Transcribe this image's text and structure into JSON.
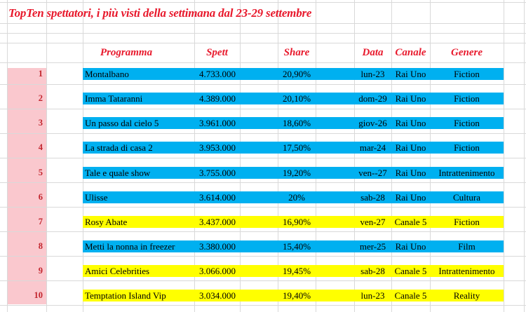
{
  "title": "TopTen spettatori, i più visti della settimana dal 23-29 settembre",
  "columns": {
    "programma": "Programma",
    "spett": "Spett",
    "share": "Share",
    "data": "Data",
    "canale": "Canale",
    "genere": "Genere"
  },
  "rows": [
    {
      "rank": "1",
      "programma": "Montalbano",
      "spett": "4.733.000",
      "share": "20,90%",
      "data": "lun-23",
      "canale": "Rai Uno",
      "genere": "Fiction",
      "highlight": "blue"
    },
    {
      "rank": "2",
      "programma": "Imma Tataranni",
      "spett": "4.389.000",
      "share": "20,10%",
      "data": "dom-29",
      "canale": "Rai Uno",
      "genere": "Fiction",
      "highlight": "blue"
    },
    {
      "rank": "3",
      "programma": "Un passo dal cielo 5",
      "spett": "3.961.000",
      "share": "18,60%",
      "data": "giov-26",
      "canale": "Rai Uno",
      "genere": "Fiction",
      "highlight": "blue"
    },
    {
      "rank": "4",
      "programma": "La strada di casa 2",
      "spett": "3.953.000",
      "share": "17,50%",
      "data": "mar-24",
      "canale": "Rai Uno",
      "genere": "Fiction",
      "highlight": "blue"
    },
    {
      "rank": "5",
      "programma": "Tale e quale show",
      "spett": "3.755.000",
      "share": "19,20%",
      "data": "ven--27",
      "canale": "Rai Uno",
      "genere": "Intrattenimento",
      "highlight": "blue"
    },
    {
      "rank": "6",
      "programma": "Ulisse",
      "spett": "3.614.000",
      "share": "20%",
      "data": "sab-28",
      "canale": "Rai Uno",
      "genere": "Cultura",
      "highlight": "blue"
    },
    {
      "rank": "7",
      "programma": "Rosy Abate",
      "spett": "3.437.000",
      "share": "16,90%",
      "data": "ven-27",
      "canale": "Canale 5",
      "genere": "Fiction",
      "highlight": "yellow"
    },
    {
      "rank": "8",
      "programma": "Metti la nonna in freezer",
      "spett": "3.380.000",
      "share": "15,40%",
      "data": "mer-25",
      "canale": "Rai Uno",
      "genere": "Film",
      "highlight": "blue"
    },
    {
      "rank": "9",
      "programma": "Amici Celebrities",
      "spett": "3.066.000",
      "share": "19,45%",
      "data": "sab-28",
      "canale": "Canale 5",
      "genere": "Intrattenimento",
      "highlight": "yellow"
    },
    {
      "rank": "10",
      "programma": "Temptation Island Vip",
      "spett": "3.034.000",
      "share": "19,40%",
      "data": "lun-23",
      "canale": "Canale 5",
      "genere": "Reality",
      "highlight": "yellow"
    }
  ],
  "colors": {
    "blue": "#00b0f0",
    "yellow": "#ffff00",
    "rank_bg": "#fac8ce",
    "red": "#e8192c",
    "rank_red": "#c2262e",
    "grid": "#d9d9d9"
  }
}
